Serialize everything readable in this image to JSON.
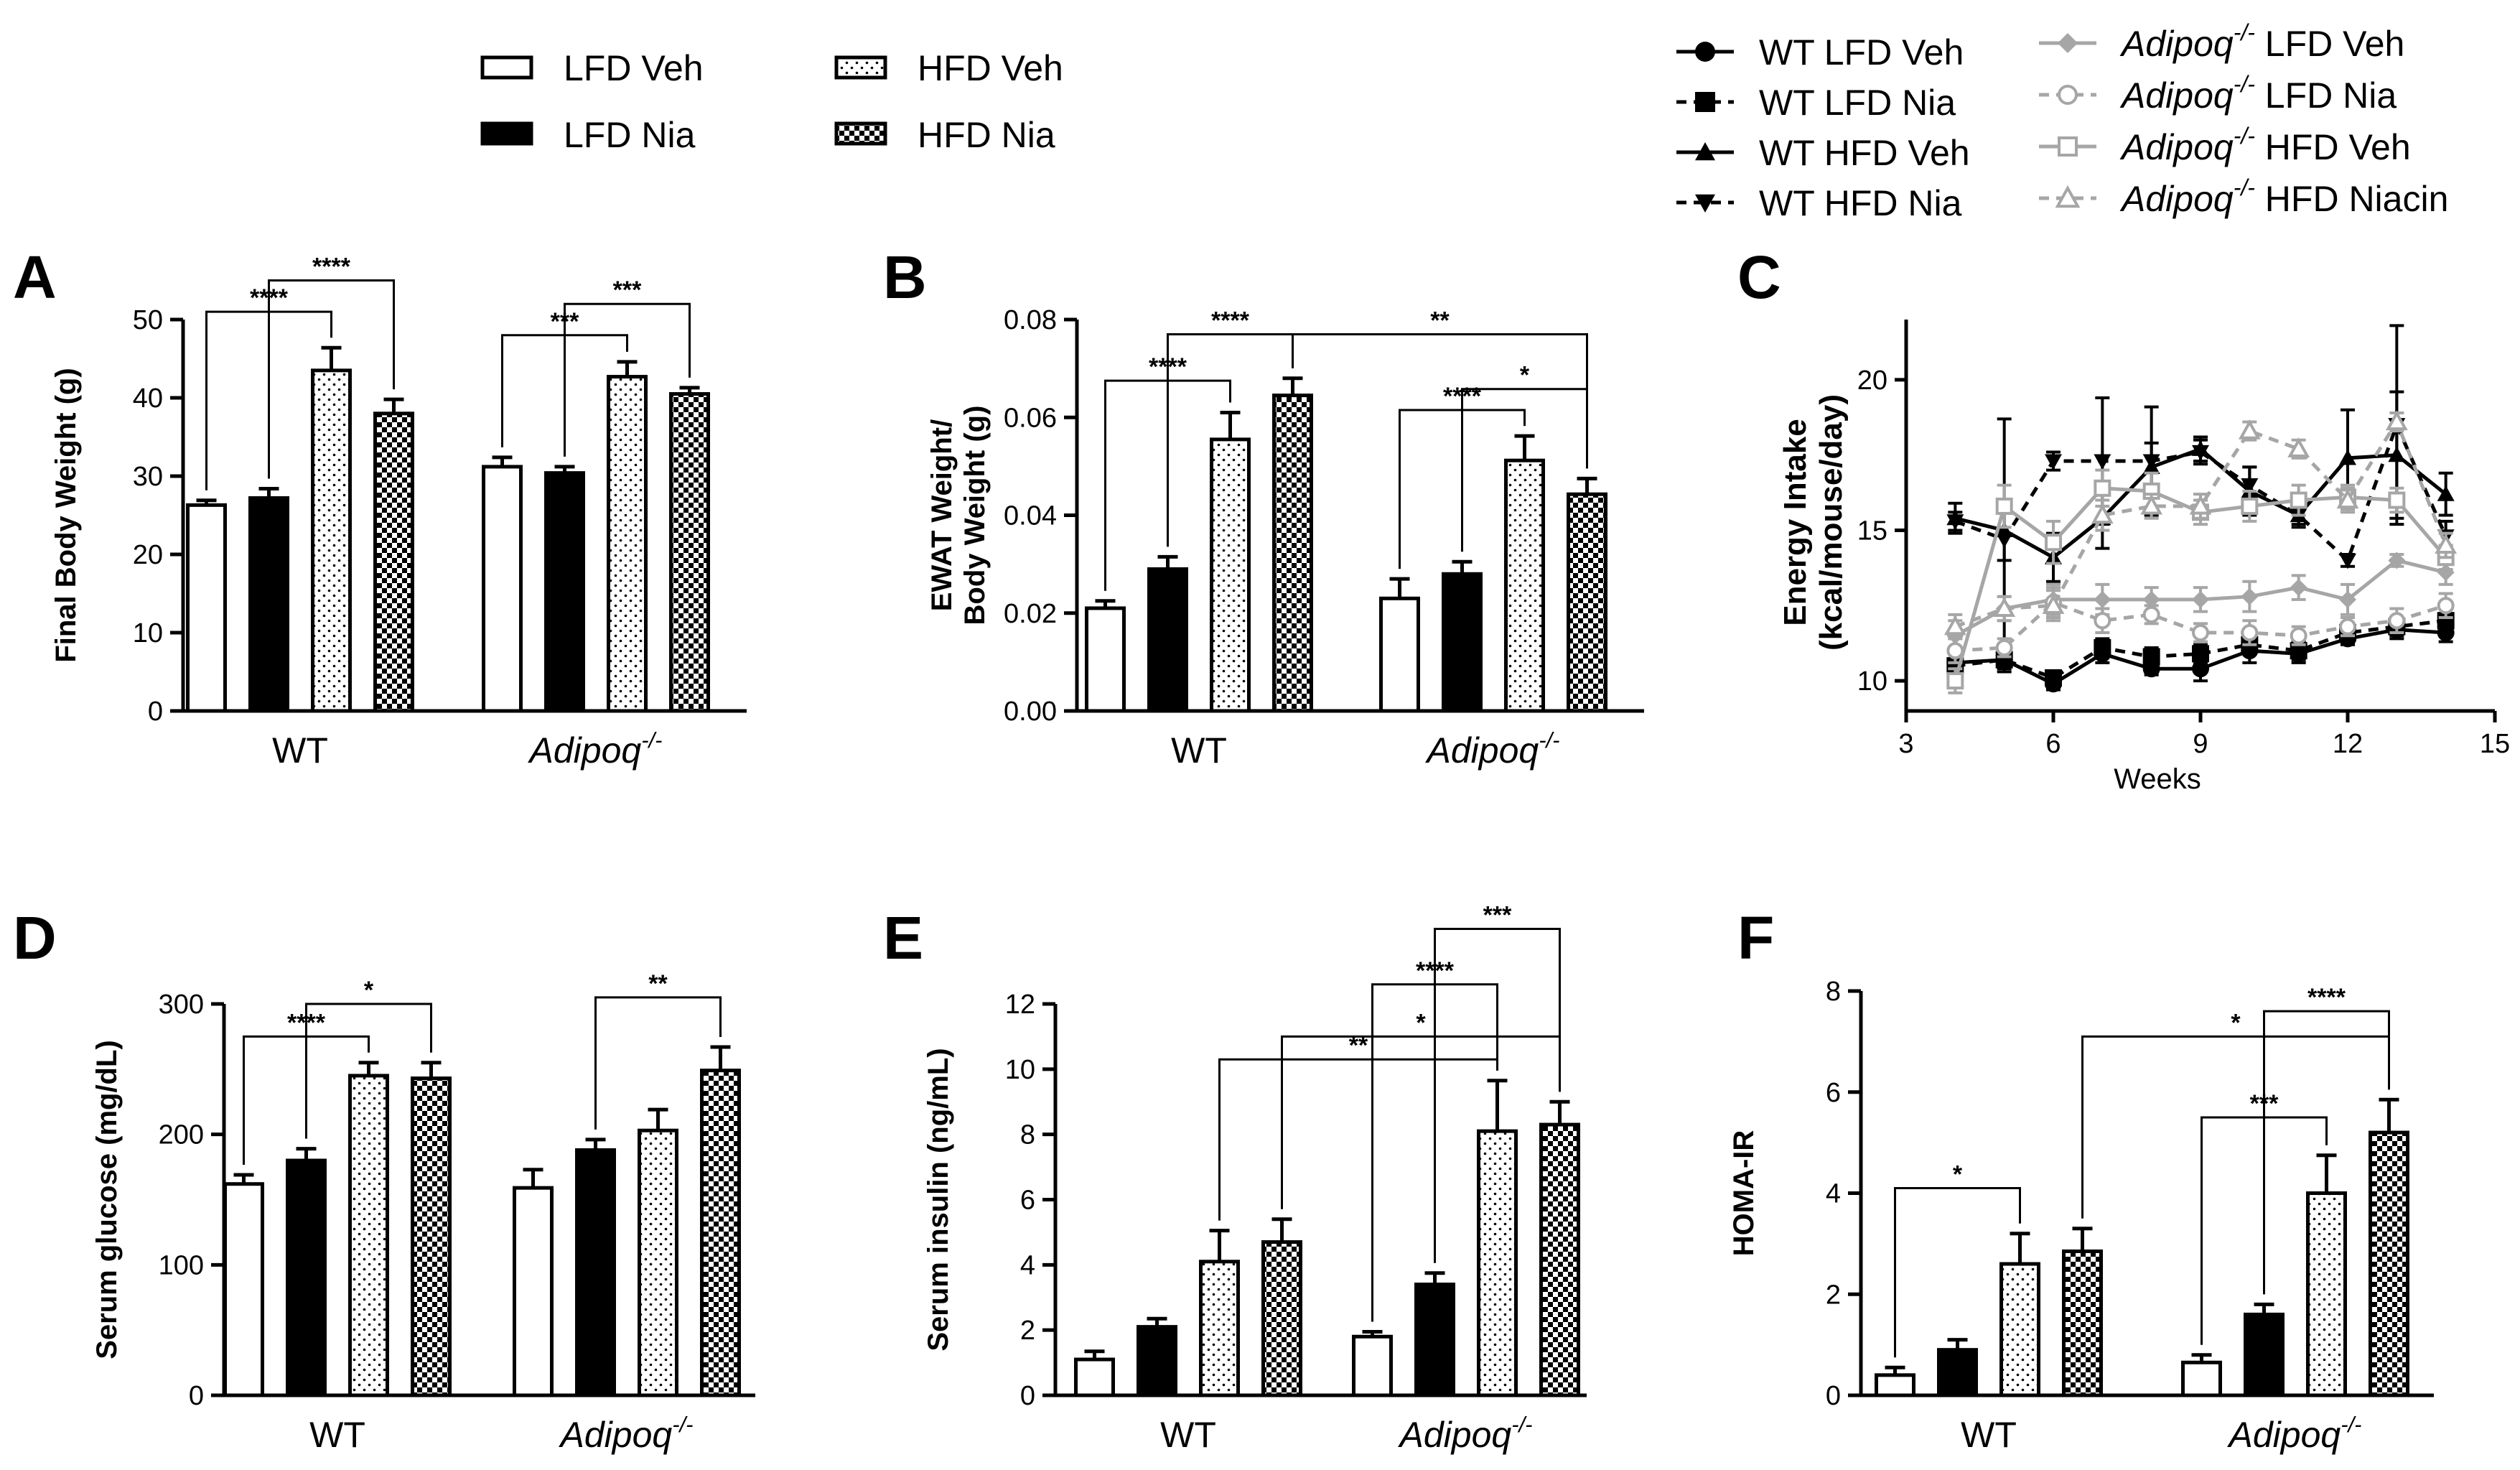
{
  "bar_legend": {
    "items": [
      {
        "label": "LFD Veh",
        "pattern": "white"
      },
      {
        "label": "LFD Nia",
        "pattern": "black"
      },
      {
        "label": "HFD Veh",
        "pattern": "dots"
      },
      {
        "label": "HFD Nia",
        "pattern": "checker"
      }
    ]
  },
  "line_legend": {
    "items": [
      {
        "label": "WT LFD Veh",
        "sup": "",
        "marker": "circle",
        "dash": false,
        "color": "#000000"
      },
      {
        "label": "WT LFD Nia",
        "sup": "",
        "marker": "square",
        "dash": true,
        "color": "#000000"
      },
      {
        "label": "WT HFD Veh",
        "sup": "",
        "marker": "triangle",
        "dash": false,
        "color": "#000000"
      },
      {
        "label": "WT HFD Nia",
        "sup": "",
        "marker": "triangle-down",
        "dash": true,
        "color": "#000000"
      },
      {
        "label": "Adipoq",
        "sup": "-/-",
        "rest": " LFD Veh",
        "marker": "diamond",
        "dash": false,
        "color": "#a6a6a6"
      },
      {
        "label": "Adipoq",
        "sup": "-/-",
        "rest": " LFD Nia",
        "marker": "circle-open",
        "dash": true,
        "color": "#a6a6a6"
      },
      {
        "label": "Adipoq",
        "sup": "-/-",
        "rest": " HFD Veh",
        "marker": "square-open",
        "dash": false,
        "color": "#a6a6a6"
      },
      {
        "label": "Adipoq",
        "sup": "-/-",
        "rest": " HFD Niacin",
        "marker": "triangle-open",
        "dash": true,
        "color": "#a6a6a6"
      }
    ]
  },
  "colors": {
    "black": "#000000",
    "gray": "#a6a6a6"
  },
  "chart_data": [
    {
      "panel": "A",
      "type": "bar",
      "ylabel": "Final Body Weight (g)",
      "ylim": [
        0,
        50
      ],
      "yticks": [
        "0",
        "10",
        "20",
        "30",
        "40",
        "50"
      ],
      "ytick_values": [
        0,
        10,
        20,
        30,
        40,
        50
      ],
      "groups": [
        {
          "label": "WT",
          "sup": ""
        },
        {
          "label": "Adipoq",
          "sup": "-/-"
        }
      ],
      "series": [
        "LFD Veh",
        "LFD Nia",
        "HFD Veh",
        "HFD Nia"
      ],
      "values": [
        [
          26.3,
          27.2,
          43.5,
          38.0
        ],
        [
          31.2,
          30.4,
          42.7,
          40.5
        ]
      ],
      "errors": [
        [
          0.6,
          1.2,
          2.9,
          1.8
        ],
        [
          1.2,
          0.8,
          1.9,
          0.8
        ]
      ],
      "significance": [
        {
          "from": [
            0,
            0
          ],
          "to": [
            0,
            2
          ],
          "label": "****",
          "level": 51
        },
        {
          "from": [
            0,
            1
          ],
          "to": [
            0,
            3
          ],
          "label": "****",
          "level": 55
        },
        {
          "from": [
            1,
            0
          ],
          "to": [
            1,
            2
          ],
          "label": "***",
          "level": 48
        },
        {
          "from": [
            1,
            1
          ],
          "to": [
            1,
            3
          ],
          "label": "***",
          "level": 52
        }
      ]
    },
    {
      "panel": "B",
      "type": "bar",
      "ylabel": "EWAT Weight/ Body Weight (g)",
      "ylabel_lines": [
        "EWAT Weight/",
        "Body Weight (g)"
      ],
      "ylim": [
        0,
        0.08
      ],
      "yticks": [
        "0.00",
        "0.02",
        "0.04",
        "0.06",
        "0.08"
      ],
      "ytick_values": [
        0,
        0.02,
        0.04,
        0.06,
        0.08
      ],
      "groups": [
        {
          "label": "WT",
          "sup": ""
        },
        {
          "label": "Adipoq",
          "sup": "-/-"
        }
      ],
      "series": [
        "LFD Veh",
        "LFD Nia",
        "HFD Veh",
        "HFD Nia"
      ],
      "values": [
        [
          0.021,
          0.029,
          0.0555,
          0.0645
        ],
        [
          0.023,
          0.028,
          0.0512,
          0.0443
        ]
      ],
      "errors": [
        [
          0.0015,
          0.0025,
          0.0055,
          0.0035
        ],
        [
          0.004,
          0.0025,
          0.005,
          0.0032
        ]
      ],
      "significance": [
        {
          "from": [
            0,
            0
          ],
          "to": [
            0,
            2
          ],
          "label": "****",
          "level": 0.0675
        },
        {
          "from": [
            0,
            1
          ],
          "to": [
            0,
            3
          ],
          "label": "****",
          "level": 0.077
        },
        {
          "from": [
            0,
            3
          ],
          "to": [
            1,
            3
          ],
          "label": "**",
          "level": 0.077
        },
        {
          "from": [
            1,
            0
          ],
          "to": [
            1,
            2
          ],
          "label": "****",
          "level": 0.0615
        },
        {
          "from": [
            1,
            1
          ],
          "to": [
            1,
            3
          ],
          "label": "*",
          "level": 0.0658
        }
      ]
    },
    {
      "panel": "C",
      "type": "line",
      "xlabel": "Weeks",
      "ylabel": "Energy Intake (kcal/mouse/day)",
      "ylabel_lines": [
        "Energy Intake",
        "(kcal/mouse/day)"
      ],
      "xlim": [
        3,
        15
      ],
      "xticks": [
        "3",
        "6",
        "9",
        "12",
        "15"
      ],
      "xtick_values": [
        3,
        6,
        9,
        12,
        15
      ],
      "ylim": [
        9,
        22
      ],
      "yticks": [
        "10",
        "15",
        "20"
      ],
      "ytick_values": [
        10,
        15,
        20
      ],
      "x": [
        4,
        5,
        6,
        7,
        8,
        9,
        10,
        11,
        12,
        13,
        14
      ],
      "series": [
        {
          "name": "WT LFD Veh",
          "values": [
            10.6,
            10.7,
            9.9,
            10.9,
            10.4,
            10.4,
            11.0,
            10.9,
            11.4,
            11.7,
            11.6
          ],
          "errors": [
            0.4,
            0.4,
            0.2,
            0.3,
            0.2,
            0.4,
            0.4,
            0.3,
            0.2,
            0.3,
            0.3
          ]
        },
        {
          "name": "WT LFD Nia",
          "values": [
            10.5,
            10.7,
            10.1,
            11.1,
            10.8,
            10.9,
            11.2,
            11.0,
            11.6,
            11.8,
            12.0
          ],
          "errors": [
            0.5,
            0.3,
            0.2,
            0.3,
            0.3,
            0.3,
            0.3,
            0.3,
            0.3,
            0.3,
            0.4
          ]
        },
        {
          "name": "WT HFD Veh",
          "values": [
            15.4,
            15.0,
            14.1,
            15.4,
            17.1,
            17.7,
            16.3,
            15.5,
            17.4,
            17.5,
            16.2
          ],
          "errors": [
            0.5,
            1.0,
            0.8,
            1.0,
            0.8,
            0.4,
            0.8,
            0.4,
            1.6,
            2.1,
            0.7
          ]
        },
        {
          "name": "WT HFD Nia",
          "values": [
            15.3,
            14.7,
            17.3,
            17.3,
            17.3,
            17.6,
            16.5,
            15.5,
            14.0,
            18.5,
            14.8
          ],
          "errors": [
            0.3,
            4.0,
            0.3,
            2.1,
            1.8,
            0.4,
            0.6,
            0.3,
            0.2,
            3.3,
            0.5
          ]
        },
        {
          "name": "Adipoq-/- LFD Veh",
          "values": [
            11.5,
            12.4,
            12.7,
            12.7,
            12.7,
            12.7,
            12.8,
            13.1,
            12.7,
            14.0,
            13.6
          ],
          "errors": [
            0.5,
            0.4,
            0.5,
            0.5,
            0.4,
            0.4,
            0.5,
            0.4,
            0.5,
            0.2,
            0.4
          ]
        },
        {
          "name": "Adipoq-/- LFD Nia",
          "values": [
            11.0,
            11.1,
            12.6,
            12.0,
            12.2,
            11.6,
            11.6,
            11.5,
            11.8,
            12.0,
            12.5
          ],
          "errors": [
            0.4,
            0.3,
            0.5,
            0.4,
            0.3,
            0.3,
            0.4,
            0.3,
            0.3,
            0.4,
            0.4
          ]
        },
        {
          "name": "Adipoq-/- HFD Veh",
          "values": [
            10.0,
            15.8,
            14.6,
            16.4,
            16.3,
            15.6,
            15.8,
            16.0,
            16.1,
            16.0,
            14.1
          ],
          "errors": [
            0.4,
            0.7,
            0.7,
            0.6,
            0.6,
            0.4,
            0.5,
            0.5,
            0.4,
            0.4,
            0.4
          ]
        },
        {
          "name": "Adipoq-/- HFD Niacin",
          "values": [
            11.8,
            12.4,
            12.5,
            15.5,
            15.8,
            15.8,
            18.3,
            17.7,
            16.0,
            18.6,
            14.5
          ],
          "errors": [
            0.4,
            0.4,
            0.5,
            0.5,
            0.4,
            0.4,
            0.3,
            0.3,
            0.4,
            0.3,
            0.4
          ]
        }
      ]
    },
    {
      "panel": "D",
      "type": "bar",
      "ylabel": "Serum glucose (mg/dL)",
      "ylim": [
        0,
        300
      ],
      "yticks": [
        "0",
        "100",
        "200",
        "300"
      ],
      "ytick_values": [
        0,
        100,
        200,
        300
      ],
      "groups": [
        {
          "label": "WT",
          "sup": ""
        },
        {
          "label": "Adipoq",
          "sup": "-/-"
        }
      ],
      "series": [
        "LFD Veh",
        "LFD Nia",
        "HFD Veh",
        "HFD Nia"
      ],
      "values": [
        [
          162,
          180,
          245,
          243
        ],
        [
          159,
          188,
          203,
          249
        ]
      ],
      "errors": [
        [
          7,
          9,
          10,
          12
        ],
        [
          14,
          8,
          16,
          18
        ]
      ],
      "significance": [
        {
          "from": [
            0,
            0
          ],
          "to": [
            0,
            2
          ],
          "label": "****",
          "level": 275
        },
        {
          "from": [
            0,
            1
          ],
          "to": [
            0,
            3
          ],
          "label": "*",
          "level": 300
        },
        {
          "from": [
            1,
            1
          ],
          "to": [
            1,
            3
          ],
          "label": "**",
          "level": 305
        }
      ]
    },
    {
      "panel": "E",
      "type": "bar",
      "ylabel": "Serum insulin (ng/mL)",
      "ylim": [
        0,
        12
      ],
      "yticks": [
        "0",
        "2",
        "4",
        "6",
        "8",
        "10",
        "12"
      ],
      "ytick_values": [
        0,
        2,
        4,
        6,
        8,
        10,
        12
      ],
      "groups": [
        {
          "label": "WT",
          "sup": ""
        },
        {
          "label": "Adipoq",
          "sup": "-/-"
        }
      ],
      "series": [
        "LFD Veh",
        "LFD Nia",
        "HFD Veh",
        "HFD Nia"
      ],
      "values": [
        [
          1.1,
          2.1,
          4.1,
          4.7
        ],
        [
          1.8,
          3.4,
          8.1,
          8.3
        ]
      ],
      "errors": [
        [
          0.25,
          0.25,
          0.95,
          0.7
        ],
        [
          0.15,
          0.35,
          1.55,
          0.7
        ]
      ],
      "significance": [
        {
          "from": [
            0,
            2
          ],
          "to": [
            1,
            2
          ],
          "label": "**",
          "level": 10.3
        },
        {
          "from": [
            0,
            3
          ],
          "to": [
            1,
            3
          ],
          "label": "*",
          "level": 11.0
        },
        {
          "from": [
            1,
            0
          ],
          "to": [
            1,
            2
          ],
          "label": "****",
          "level": 12.6
        },
        {
          "from": [
            1,
            1
          ],
          "to": [
            1,
            3
          ],
          "label": "***",
          "level": 14.3
        }
      ]
    },
    {
      "panel": "F",
      "type": "bar",
      "ylabel": "HOMA-IR",
      "ylim": [
        0,
        8
      ],
      "yticks": [
        "0",
        "2",
        "4",
        "6",
        "8"
      ],
      "ytick_values": [
        0,
        2,
        4,
        6,
        8
      ],
      "groups": [
        {
          "label": "WT",
          "sup": ""
        },
        {
          "label": "Adipoq",
          "sup": "-/-"
        }
      ],
      "series": [
        "LFD Veh",
        "LFD Nia",
        "HFD Veh",
        "HFD Nia"
      ],
      "values": [
        [
          0.4,
          0.9,
          2.6,
          2.85
        ],
        [
          0.65,
          1.6,
          4.0,
          5.2
        ]
      ],
      "errors": [
        [
          0.15,
          0.2,
          0.6,
          0.45
        ],
        [
          0.15,
          0.2,
          0.75,
          0.65
        ]
      ],
      "significance": [
        {
          "from": [
            0,
            0
          ],
          "to": [
            0,
            2
          ],
          "label": "*",
          "level": 4.1
        },
        {
          "from": [
            0,
            3
          ],
          "to": [
            1,
            3
          ],
          "label": "*",
          "level": 7.1
        },
        {
          "from": [
            1,
            0
          ],
          "to": [
            1,
            2
          ],
          "label": "***",
          "level": 5.5
        },
        {
          "from": [
            1,
            1
          ],
          "to": [
            1,
            3
          ],
          "label": "****",
          "level": 7.6
        }
      ]
    }
  ]
}
